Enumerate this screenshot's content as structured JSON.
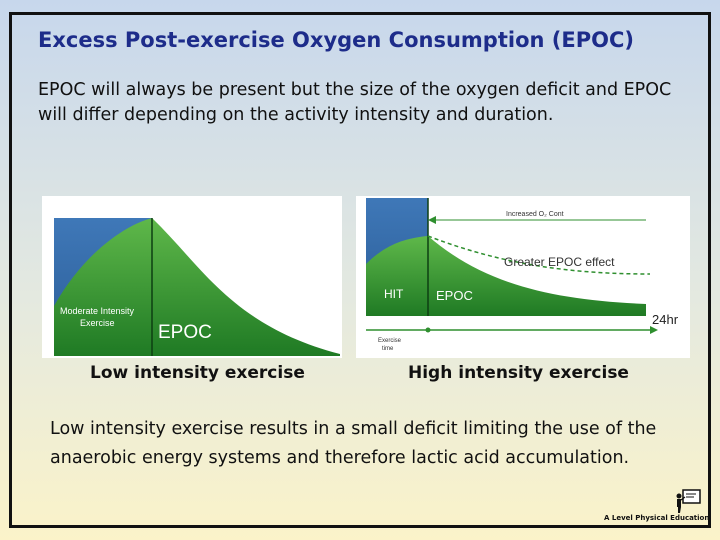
{
  "slide": {
    "title": "Excess Post-exercise Oxygen Consumption (EPOC)",
    "intro": "EPOC will always be present but the size of the oxygen deficit and EPOC will differ depending on the activity intensity and duration.",
    "summary": "Low intensity exercise results in a small deficit limiting the use of the anaerobic energy systems and therefore lactic acid accumulation."
  },
  "low_chart": {
    "caption": "Low intensity exercise",
    "deficit_label_line1": "Moderate Intensity",
    "deficit_label_line2": "Exercise",
    "epoc_label": "EPOC"
  },
  "high_chart": {
    "caption": "High intensity exercise",
    "arrow_label": "Increased O₂ Cont",
    "effect_label": "Greater EPOC effect",
    "hit_label": "HIT",
    "epoc_label": "EPOC",
    "time_label": "24hr",
    "axis_label_line1": "Exercise",
    "axis_label_line2": "time"
  },
  "branding": {
    "logo_text": "A Level Physical Education",
    "icon": "presenter-board-icon"
  },
  "colors": {
    "title": "#1d2c8a",
    "deficit_blue": "#3a6fae",
    "epoc_green": "#2f8f2f",
    "curve_green": "#1e7a28"
  }
}
